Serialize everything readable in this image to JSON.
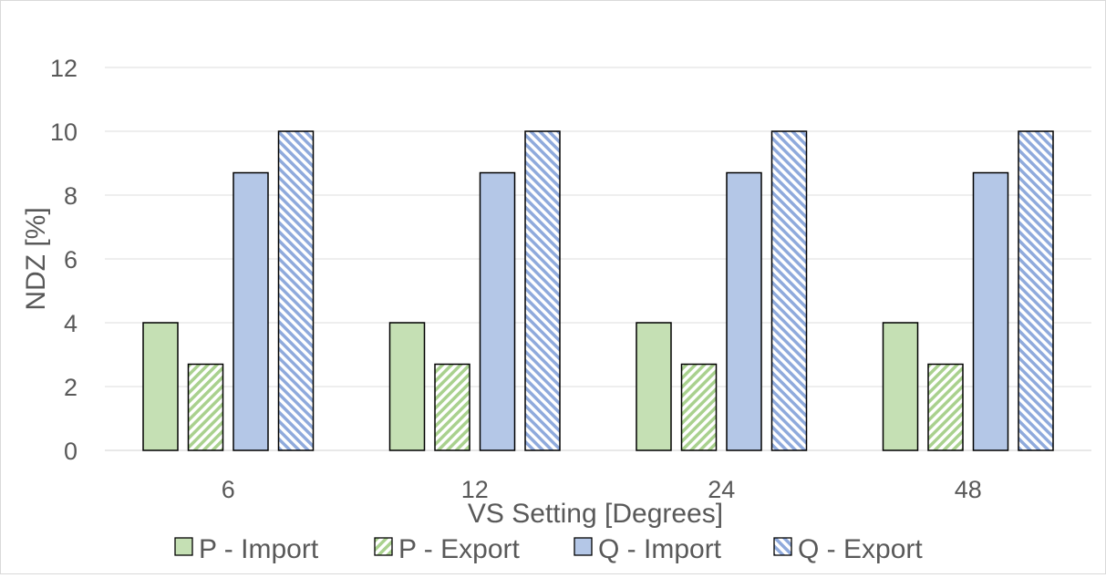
{
  "chart_data": {
    "type": "bar",
    "title": "",
    "xlabel": "VS Setting [Degrees]",
    "ylabel": "NDZ [%]",
    "ylim": [
      0,
      12
    ],
    "yticks": [
      0,
      2,
      4,
      6,
      8,
      10,
      12
    ],
    "grid": true,
    "legend_position": "bottom",
    "categories": [
      "6",
      "12",
      "24",
      "48"
    ],
    "series": [
      {
        "name": "P - Import",
        "values": [
          4,
          4,
          4,
          4
        ],
        "color": "#c5e0b4",
        "pattern": "solid"
      },
      {
        "name": "P - Export",
        "values": [
          2.7,
          2.7,
          2.7,
          2.7
        ],
        "color": "#a9d18e",
        "pattern": "diagonal-up"
      },
      {
        "name": "Q - Import",
        "values": [
          8.7,
          8.7,
          8.7,
          8.7
        ],
        "color": "#b4c7e7",
        "pattern": "solid"
      },
      {
        "name": "Q - Export",
        "values": [
          10,
          10,
          10,
          10
        ],
        "color": "#8faadc",
        "pattern": "diagonal-down"
      }
    ]
  }
}
